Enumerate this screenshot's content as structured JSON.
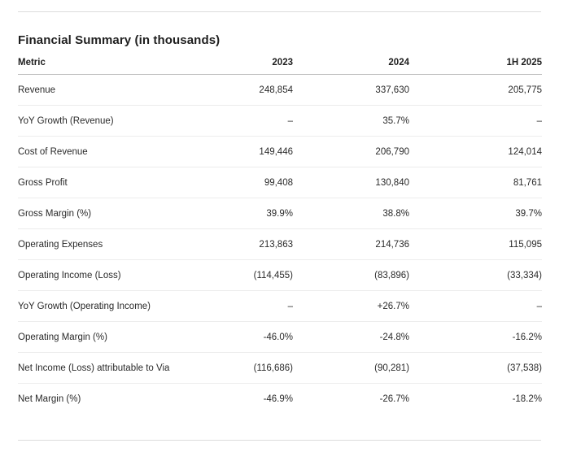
{
  "title": "Financial Summary (in thousands)",
  "table": {
    "headers": [
      "Metric",
      "2023",
      "2024",
      "1H 2025"
    ],
    "rows": [
      [
        "Revenue",
        "248,854",
        "337,630",
        "205,775"
      ],
      [
        "YoY Growth (Revenue)",
        "–",
        "35.7%",
        "–"
      ],
      [
        "Cost of Revenue",
        "149,446",
        "206,790",
        "124,014"
      ],
      [
        "Gross Profit",
        "99,408",
        "130,840",
        "81,761"
      ],
      [
        "Gross Margin (%)",
        "39.9%",
        "38.8%",
        "39.7%"
      ],
      [
        "Operating Expenses",
        "213,863",
        "214,736",
        "115,095"
      ],
      [
        "Operating Income (Loss)",
        "(114,455)",
        "(83,896)",
        "(33,334)"
      ],
      [
        "YoY Growth (Operating Income)",
        "–",
        "+26.7%",
        "–"
      ],
      [
        "Operating Margin (%)",
        "-46.0%",
        "-24.8%",
        "-16.2%"
      ],
      [
        "Net Income (Loss) attributable to Via",
        "(116,686)",
        "(90,281)",
        "(37,538)"
      ],
      [
        "Net Margin (%)",
        "-46.9%",
        "-26.7%",
        "-18.2%"
      ]
    ]
  }
}
